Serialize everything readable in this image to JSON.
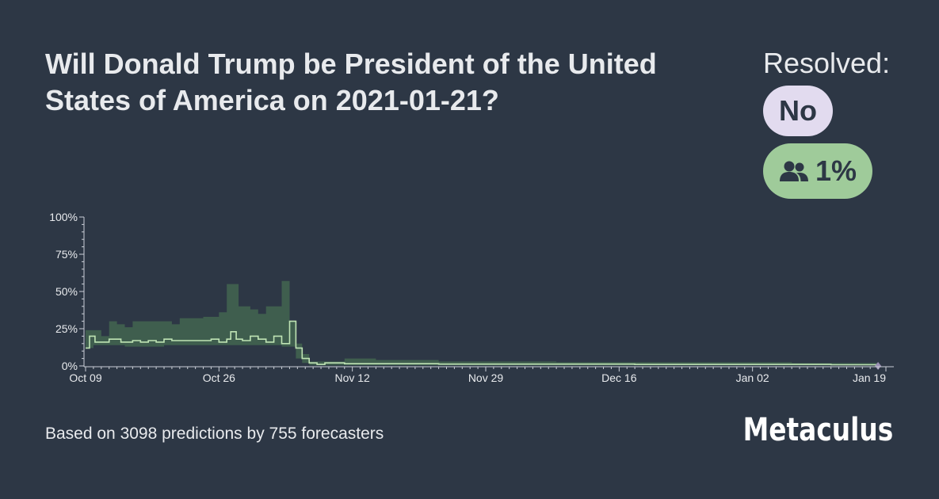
{
  "question": {
    "title": "Will Donald Trump be President of the United States of America on 2021-01-21?"
  },
  "resolution": {
    "label": "Resolved:",
    "value": "No"
  },
  "community_forecast": {
    "icon": "users-icon",
    "value": "1%"
  },
  "footer": {
    "summary": "Based on 3098 predictions by 755 forecasters",
    "brand": "Metaculus"
  },
  "colors": {
    "background": "#2d3745",
    "band": "#3f5e4e",
    "median_line": "#bfe3b4",
    "resolution_badge": "#e2dbef",
    "forecast_badge": "#9fcb9a"
  },
  "chart_data": {
    "type": "area",
    "x_unit": "days since Oct 09 2020",
    "ylim": [
      0,
      100
    ],
    "y_ticks": [
      "0%",
      "25%",
      "50%",
      "75%",
      "100%"
    ],
    "x_ticks": [
      {
        "day": 0,
        "label": "Oct 09"
      },
      {
        "day": 17,
        "label": "Oct 26"
      },
      {
        "day": 34,
        "label": "Nov 12"
      },
      {
        "day": 51,
        "label": "Nov 29"
      },
      {
        "day": 68,
        "label": "Dec 16"
      },
      {
        "day": 85,
        "label": "Jan 02"
      },
      {
        "day": 102,
        "label": "Jan 19"
      }
    ],
    "resolution_day": 101,
    "series": [
      {
        "name": "community median",
        "points": [
          [
            0,
            12
          ],
          [
            0.5,
            20
          ],
          [
            1.2,
            16
          ],
          [
            3,
            18
          ],
          [
            4.5,
            16
          ],
          [
            6,
            17
          ],
          [
            7,
            16
          ],
          [
            8,
            17
          ],
          [
            9,
            16
          ],
          [
            10,
            18
          ],
          [
            11,
            17
          ],
          [
            14,
            17
          ],
          [
            16,
            18
          ],
          [
            17,
            16
          ],
          [
            18,
            18
          ],
          [
            18.5,
            23
          ],
          [
            19.2,
            18
          ],
          [
            20,
            17
          ],
          [
            21,
            20
          ],
          [
            22,
            18
          ],
          [
            23,
            16
          ],
          [
            24,
            20
          ],
          [
            25,
            15
          ],
          [
            26,
            30
          ],
          [
            26.8,
            12
          ],
          [
            27.6,
            5
          ],
          [
            28.5,
            2
          ],
          [
            29.5,
            1
          ],
          [
            30.5,
            2
          ],
          [
            33,
            1.5
          ],
          [
            45,
            1.2
          ],
          [
            70,
            1
          ],
          [
            95,
            0.8
          ],
          [
            101,
            0.8
          ]
        ]
      },
      {
        "name": "interquartile range",
        "upper": [
          [
            0,
            24
          ],
          [
            2,
            20
          ],
          [
            3,
            30
          ],
          [
            4,
            28
          ],
          [
            5,
            26
          ],
          [
            6,
            30
          ],
          [
            11,
            28
          ],
          [
            12,
            32
          ],
          [
            15,
            33
          ],
          [
            17,
            36
          ],
          [
            18,
            55
          ],
          [
            19.5,
            40
          ],
          [
            21,
            38
          ],
          [
            22,
            35
          ],
          [
            23,
            40
          ],
          [
            25,
            57
          ],
          [
            26,
            30
          ],
          [
            26.8,
            15
          ],
          [
            27.6,
            8
          ],
          [
            28.5,
            3
          ],
          [
            30,
            3
          ],
          [
            33,
            5
          ],
          [
            37,
            4
          ],
          [
            45,
            3
          ],
          [
            60,
            2.5
          ],
          [
            80,
            2.5
          ],
          [
            90,
            2
          ],
          [
            101,
            2
          ]
        ],
        "lower": [
          [
            0,
            12
          ],
          [
            1,
            14
          ],
          [
            5,
            13
          ],
          [
            10,
            14
          ],
          [
            20,
            14
          ],
          [
            25,
            13
          ],
          [
            26.8,
            5
          ],
          [
            27.6,
            2
          ],
          [
            28.5,
            0.5
          ],
          [
            30,
            0.5
          ],
          [
            101,
            0.4
          ]
        ]
      }
    ]
  }
}
